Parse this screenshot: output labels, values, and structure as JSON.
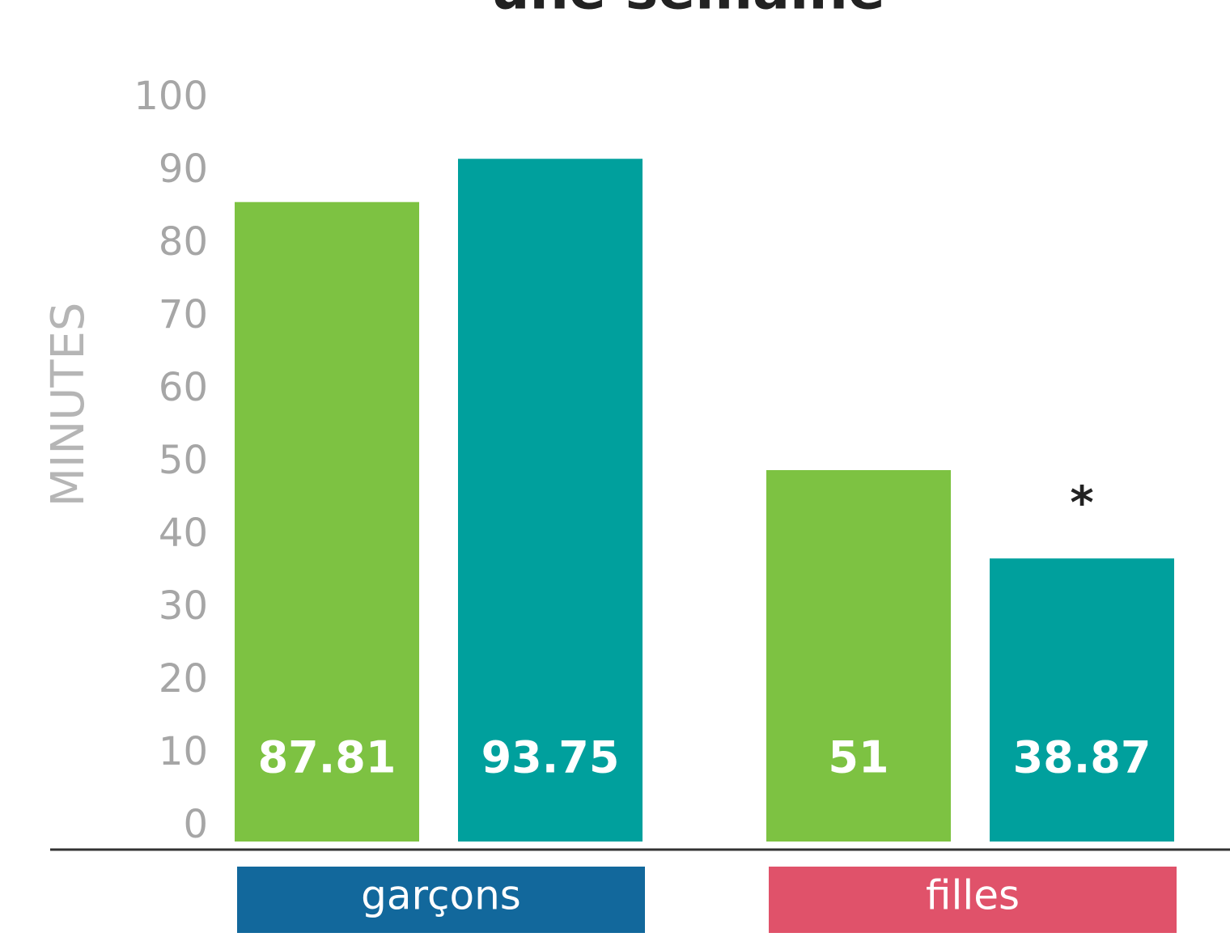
{
  "chart_data": {
    "type": "bar",
    "title": "une semaine",
    "y_label": "MINUTES",
    "categories": [
      "garçons",
      "filles"
    ],
    "category_colors": [
      "#12689c",
      "#e0526a"
    ],
    "series": [
      {
        "color": "#7dc242",
        "values": [
          87.81,
          51
        ]
      },
      {
        "color": "#00a09d",
        "values": [
          93.75,
          38.87
        ]
      }
    ],
    "annotation": "*",
    "ylim": [
      0,
      100
    ],
    "yticks": [
      0,
      10,
      20,
      30,
      40,
      50,
      60,
      70,
      80,
      90,
      100
    ]
  }
}
